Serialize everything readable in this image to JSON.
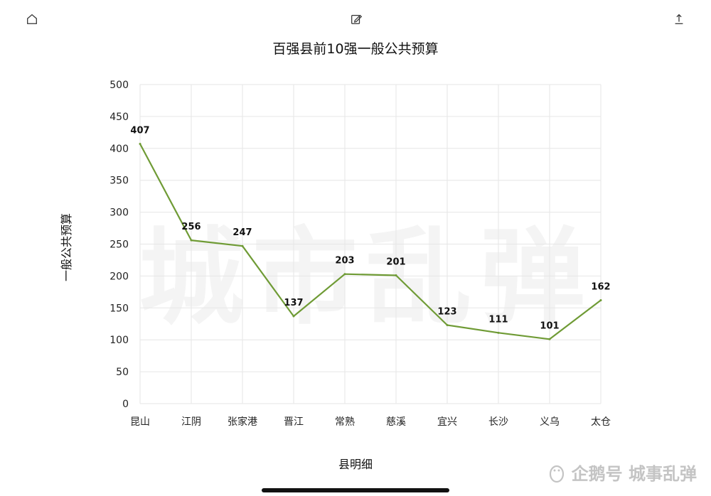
{
  "toolbar": {
    "home_icon": "home-icon",
    "edit_icon": "edit-icon",
    "share_icon": "share-icon"
  },
  "watermark": "城市乱弹",
  "footer": {
    "brand_text": "企鹅号 城事乱弹",
    "brand_icon": "penguin-icon"
  },
  "chart_data": {
    "type": "line",
    "title": "百强县前10强一般公共预算",
    "xlabel": "县明细",
    "ylabel": "一般公共预算",
    "categories": [
      "昆山",
      "江阴",
      "张家港",
      "晋江",
      "常熟",
      "慈溪",
      "宜兴",
      "长沙",
      "义乌",
      "太仓"
    ],
    "series": [
      {
        "values": [
          407,
          256,
          247,
          137,
          203,
          201,
          123,
          111,
          101,
          162
        ]
      }
    ],
    "data_labels": [
      "407",
      "256",
      "247",
      "137",
      "203",
      "201",
      "123",
      "111",
      "101",
      "162"
    ],
    "ylim": [
      0,
      500
    ],
    "yticks": [
      "0",
      "50",
      "100",
      "150",
      "200",
      "250",
      "300",
      "350",
      "400",
      "450",
      "500"
    ],
    "grid": true,
    "line_color": "#6f9b35",
    "grid_color": "#e6e6e6"
  }
}
